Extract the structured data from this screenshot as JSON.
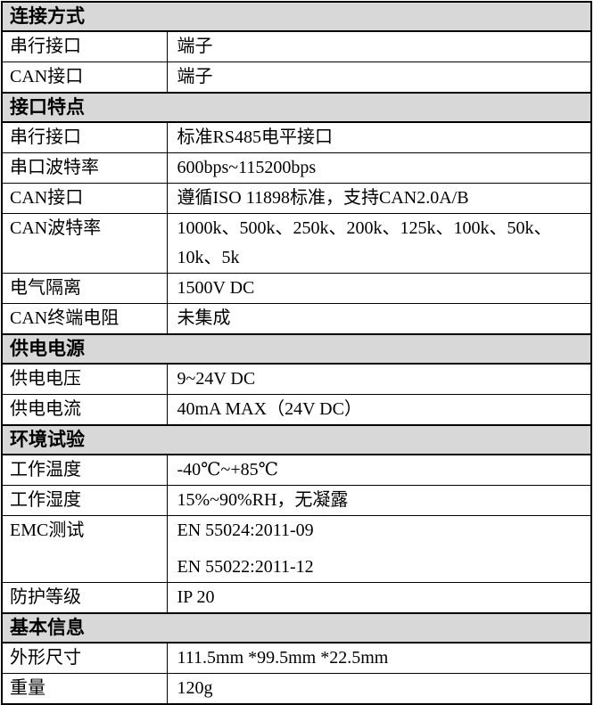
{
  "colors": {
    "header_bg": "#d8d8d8",
    "border": "#000000",
    "text": "#000000",
    "page_bg": "#ffffff"
  },
  "table": {
    "sections": [
      {
        "title": "连接方式",
        "rows": [
          {
            "label": "串行接口",
            "value": "端子"
          },
          {
            "label": "CAN接口",
            "value": "端子"
          }
        ]
      },
      {
        "title": "接口特点",
        "rows": [
          {
            "label": "串行接口",
            "value": "标准RS485电平接口"
          },
          {
            "label": "串口波特率",
            "value": "600bps~115200bps"
          },
          {
            "label": "CAN接口",
            "value": "遵循ISO 11898标准，支持CAN2.0A/B"
          },
          {
            "label": "CAN波特率",
            "value": "1000k、500k、250k、200k、125k、100k、50k、10k、5k"
          },
          {
            "label": "电气隔离",
            "value": "1500V DC"
          },
          {
            "label": "CAN终端电阻",
            "value": "未集成"
          }
        ]
      },
      {
        "title": "供电电源",
        "rows": [
          {
            "label": "供电电压",
            "value": "9~24V DC"
          },
          {
            "label": "供电电流",
            "value": "40mA MAX（24V DC）"
          }
        ]
      },
      {
        "title": "环境试验",
        "rows": [
          {
            "label": "工作温度",
            "value": "-40℃~+85℃"
          },
          {
            "label": "工作湿度",
            "value": "15%~90%RH，无凝露"
          },
          {
            "label": "EMC测试",
            "value_lines": [
              "EN 55024:2011-09",
              "EN 55022:2011-12"
            ]
          },
          {
            "label": "防护等级",
            "value": "IP 20"
          }
        ]
      },
      {
        "title": "基本信息",
        "rows": [
          {
            "label": "外形尺寸",
            "value": "111.5mm *99.5mm *22.5mm"
          },
          {
            "label": "重量",
            "value": "120g"
          }
        ]
      }
    ]
  }
}
